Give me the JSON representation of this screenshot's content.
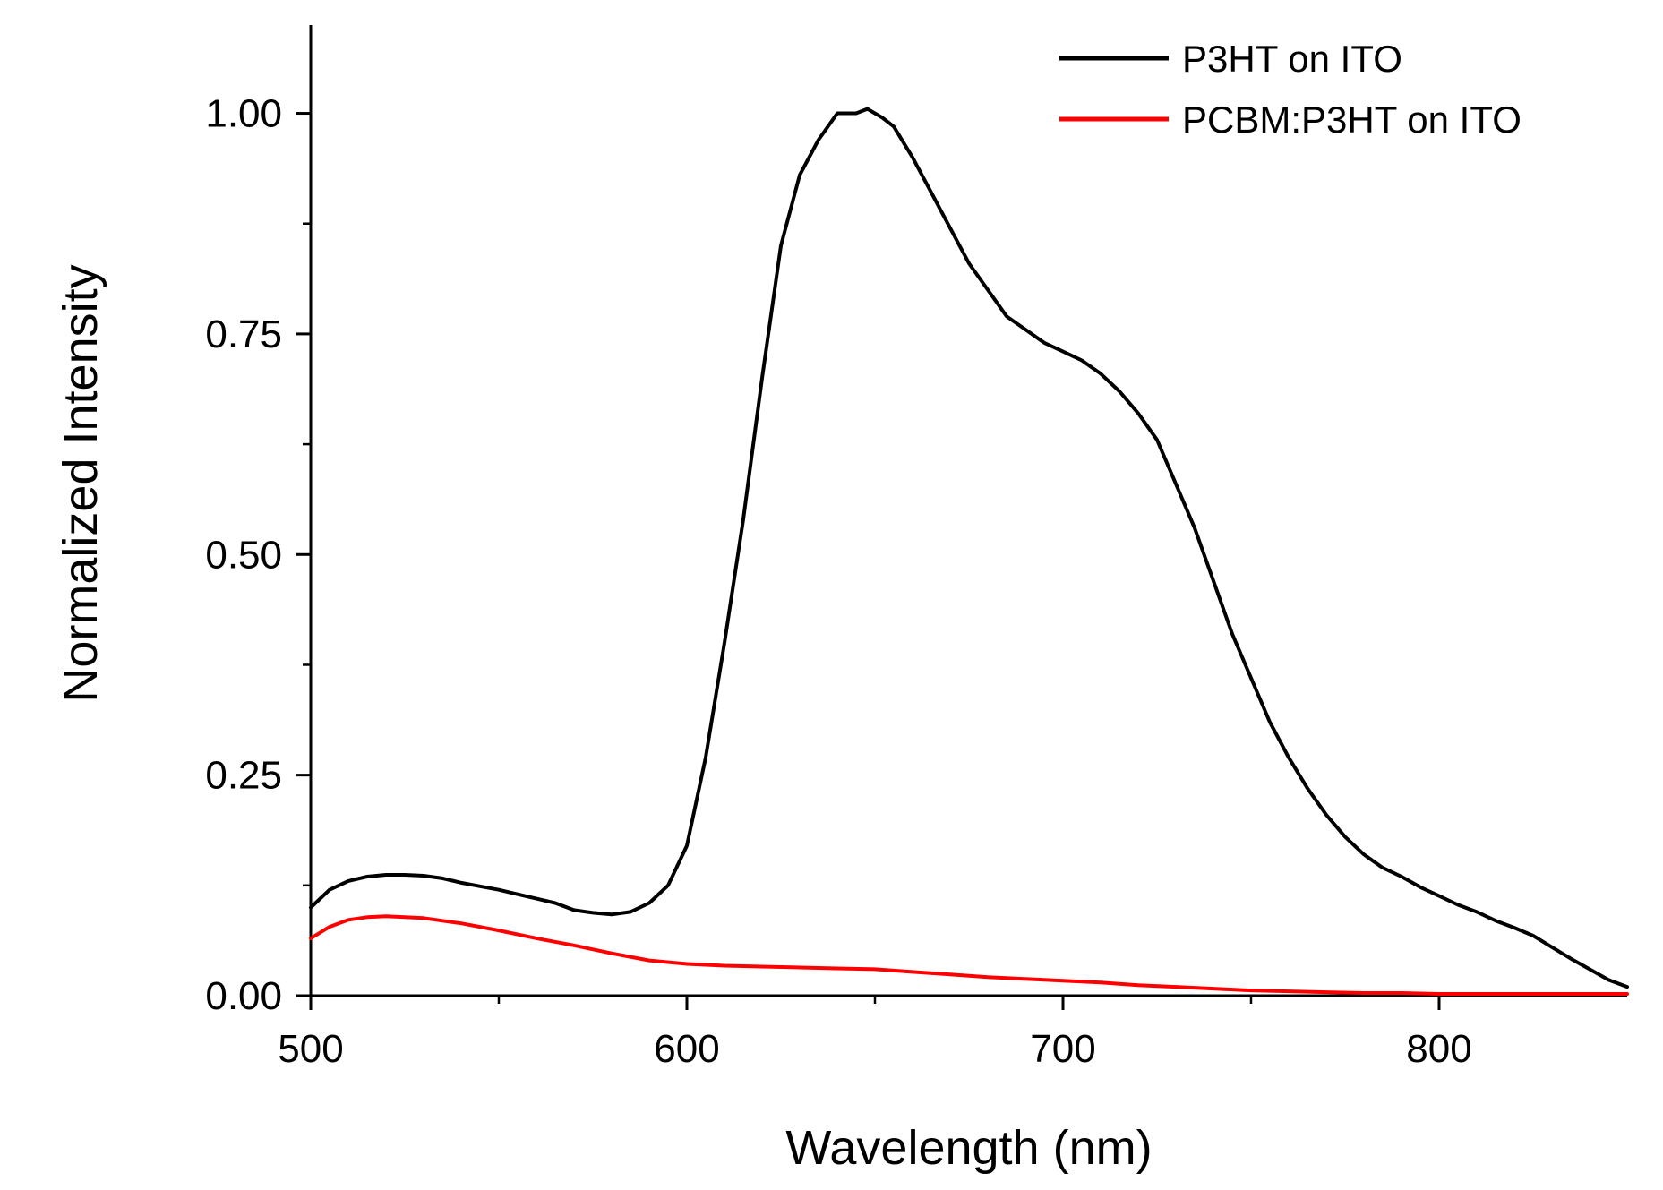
{
  "chart_data": {
    "type": "line",
    "title": "",
    "xlabel": "Wavelength (nm)",
    "ylabel": "Normalized Intensity",
    "xlim": [
      500,
      850
    ],
    "ylim": [
      0,
      1.1
    ],
    "x_ticks": [
      500,
      600,
      700,
      800
    ],
    "x_tick_labels": [
      "500",
      "600",
      "700",
      "800"
    ],
    "y_ticks": [
      0,
      0.25,
      0.5,
      0.75,
      1.0
    ],
    "y_tick_labels": [
      "0.00",
      "0.25",
      "0.50",
      "0.75",
      "1.00"
    ],
    "grid": false,
    "legend_position": "top-right",
    "series": [
      {
        "name": "P3HT on ITO",
        "color": "#000000",
        "x": [
          500,
          505,
          510,
          515,
          520,
          525,
          530,
          535,
          540,
          545,
          550,
          555,
          560,
          565,
          570,
          575,
          580,
          585,
          590,
          595,
          600,
          605,
          610,
          615,
          620,
          625,
          630,
          635,
          640,
          645,
          648,
          652,
          655,
          660,
          665,
          670,
          675,
          680,
          685,
          690,
          695,
          700,
          705,
          710,
          715,
          720,
          725,
          730,
          735,
          740,
          745,
          750,
          755,
          760,
          765,
          770,
          775,
          780,
          785,
          790,
          795,
          800,
          805,
          810,
          815,
          820,
          825,
          830,
          835,
          840,
          845,
          850
        ],
        "y": [
          0.1,
          0.12,
          0.13,
          0.135,
          0.137,
          0.137,
          0.136,
          0.133,
          0.128,
          0.124,
          0.12,
          0.115,
          0.11,
          0.105,
          0.097,
          0.094,
          0.092,
          0.095,
          0.105,
          0.125,
          0.17,
          0.27,
          0.4,
          0.54,
          0.7,
          0.85,
          0.93,
          0.97,
          1.0,
          1.0,
          1.005,
          0.995,
          0.985,
          0.95,
          0.91,
          0.87,
          0.83,
          0.8,
          0.77,
          0.755,
          0.74,
          0.73,
          0.72,
          0.705,
          0.685,
          0.66,
          0.63,
          0.58,
          0.53,
          0.47,
          0.41,
          0.36,
          0.31,
          0.27,
          0.235,
          0.205,
          0.18,
          0.16,
          0.145,
          0.135,
          0.123,
          0.113,
          0.103,
          0.095,
          0.085,
          0.077,
          0.068,
          0.055,
          0.042,
          0.03,
          0.018,
          0.01
        ]
      },
      {
        "name": "PCBM:P3HT on ITO",
        "color": "#ff0000",
        "x": [
          500,
          505,
          510,
          515,
          520,
          530,
          540,
          550,
          560,
          570,
          580,
          590,
          600,
          610,
          620,
          630,
          640,
          650,
          660,
          670,
          680,
          690,
          700,
          710,
          720,
          730,
          740,
          750,
          760,
          770,
          780,
          790,
          800,
          810,
          820,
          830,
          840,
          850
        ],
        "y": [
          0.065,
          0.078,
          0.086,
          0.089,
          0.09,
          0.088,
          0.082,
          0.074,
          0.065,
          0.057,
          0.048,
          0.04,
          0.036,
          0.034,
          0.033,
          0.032,
          0.031,
          0.03,
          0.027,
          0.024,
          0.021,
          0.019,
          0.017,
          0.015,
          0.012,
          0.01,
          0.008,
          0.006,
          0.005,
          0.004,
          0.003,
          0.003,
          0.002,
          0.002,
          0.002,
          0.002,
          0.002,
          0.002
        ]
      }
    ]
  }
}
